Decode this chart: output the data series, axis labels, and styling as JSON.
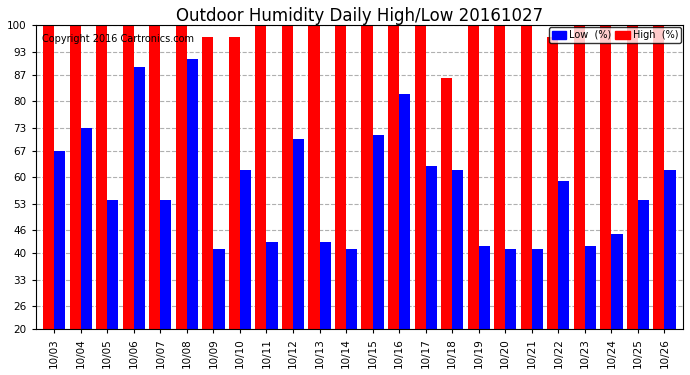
{
  "title": "Outdoor Humidity Daily High/Low 20161027",
  "copyright": "Copyright 2016 Cartronics.com",
  "categories": [
    "10/03",
    "10/04",
    "10/05",
    "10/06",
    "10/07",
    "10/08",
    "10/09",
    "10/10",
    "10/11",
    "10/12",
    "10/13",
    "10/14",
    "10/15",
    "10/16",
    "10/17",
    "10/18",
    "10/19",
    "10/20",
    "10/21",
    "10/22",
    "10/23",
    "10/24",
    "10/25",
    "10/26"
  ],
  "high": [
    100,
    100,
    100,
    100,
    100,
    100,
    97,
    97,
    100,
    100,
    100,
    100,
    100,
    100,
    100,
    86,
    100,
    100,
    100,
    97,
    100,
    100,
    100,
    100
  ],
  "low": [
    67,
    73,
    54,
    89,
    54,
    91,
    41,
    62,
    43,
    70,
    43,
    41,
    71,
    82,
    63,
    62,
    42,
    41,
    41,
    59,
    42,
    45,
    54,
    62
  ],
  "high_color": "#ff0000",
  "low_color": "#0000ff",
  "bg_color": "#ffffff",
  "grid_color": "#b0b0b0",
  "ylim_min": 20,
  "ylim_max": 100,
  "yticks": [
    20,
    26,
    33,
    40,
    46,
    53,
    60,
    67,
    73,
    80,
    87,
    93,
    100
  ],
  "bar_width": 0.42,
  "title_fontsize": 12,
  "tick_fontsize": 7.5,
  "copyright_fontsize": 7,
  "legend_low_label": "Low  (%)",
  "legend_high_label": "High  (%)"
}
